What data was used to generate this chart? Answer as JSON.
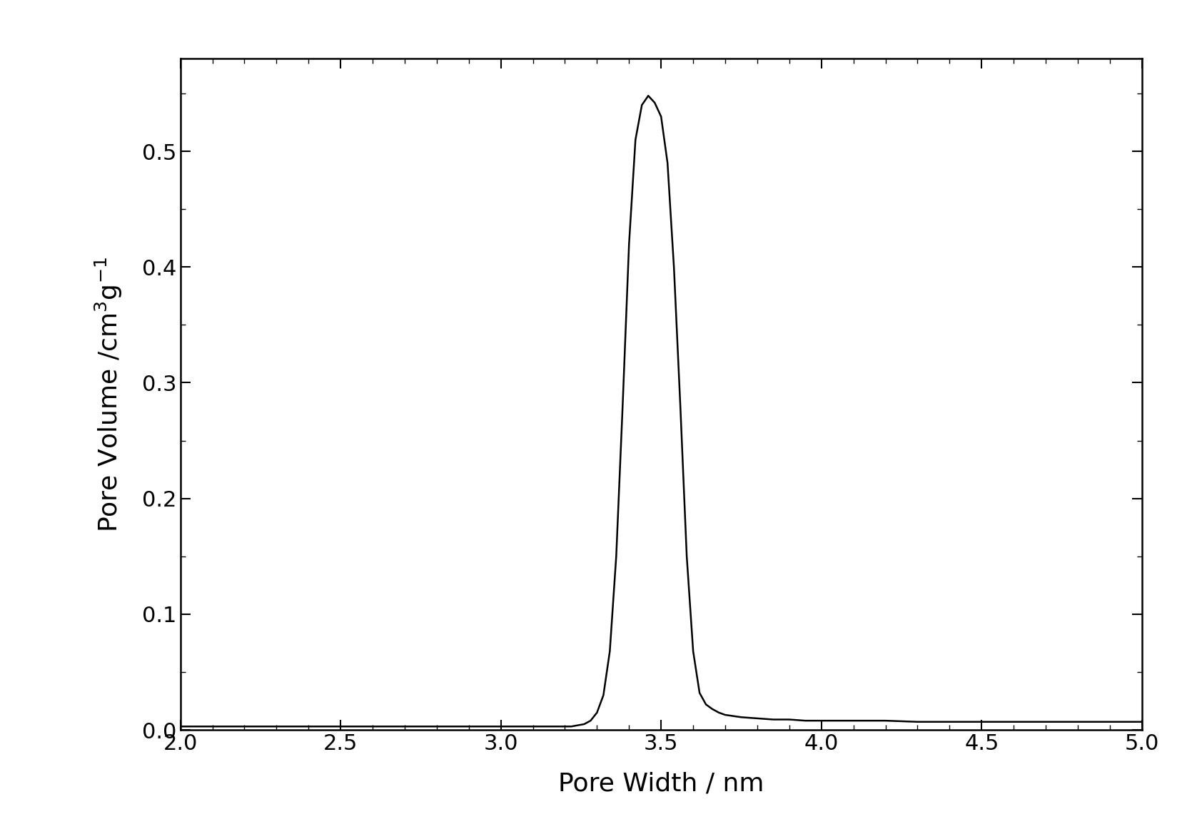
{
  "xlabel": "Pore Width / nm",
  "ylabel_latex": "Pore Volume /cm$^3$g$^{-1}$",
  "xlim": [
    2.0,
    5.0
  ],
  "ylim": [
    0.0,
    0.58
  ],
  "xticks": [
    2.0,
    2.5,
    3.0,
    3.5,
    4.0,
    4.5,
    5.0
  ],
  "yticks": [
    0.0,
    0.1,
    0.2,
    0.3,
    0.4,
    0.5
  ],
  "line_color": "#000000",
  "line_width": 1.8,
  "background_color": "#ffffff",
  "x_data": [
    2.0,
    2.1,
    2.2,
    2.3,
    2.4,
    2.5,
    2.6,
    2.7,
    2.8,
    2.9,
    3.0,
    3.05,
    3.1,
    3.15,
    3.2,
    3.22,
    3.24,
    3.26,
    3.28,
    3.3,
    3.32,
    3.34,
    3.36,
    3.38,
    3.4,
    3.42,
    3.44,
    3.46,
    3.48,
    3.5,
    3.52,
    3.54,
    3.56,
    3.58,
    3.6,
    3.62,
    3.64,
    3.66,
    3.68,
    3.7,
    3.75,
    3.8,
    3.85,
    3.9,
    3.95,
    4.0,
    4.1,
    4.2,
    4.3,
    4.4,
    4.5,
    4.6,
    4.7,
    4.8,
    4.9,
    5.0
  ],
  "y_data": [
    0.003,
    0.003,
    0.003,
    0.003,
    0.003,
    0.003,
    0.003,
    0.003,
    0.003,
    0.003,
    0.003,
    0.003,
    0.003,
    0.003,
    0.003,
    0.003,
    0.004,
    0.005,
    0.008,
    0.015,
    0.03,
    0.068,
    0.15,
    0.28,
    0.42,
    0.51,
    0.54,
    0.548,
    0.542,
    0.53,
    0.49,
    0.4,
    0.28,
    0.15,
    0.068,
    0.032,
    0.022,
    0.018,
    0.015,
    0.013,
    0.011,
    0.01,
    0.009,
    0.009,
    0.008,
    0.008,
    0.008,
    0.008,
    0.007,
    0.007,
    0.007,
    0.007,
    0.007,
    0.007,
    0.007,
    0.007
  ]
}
